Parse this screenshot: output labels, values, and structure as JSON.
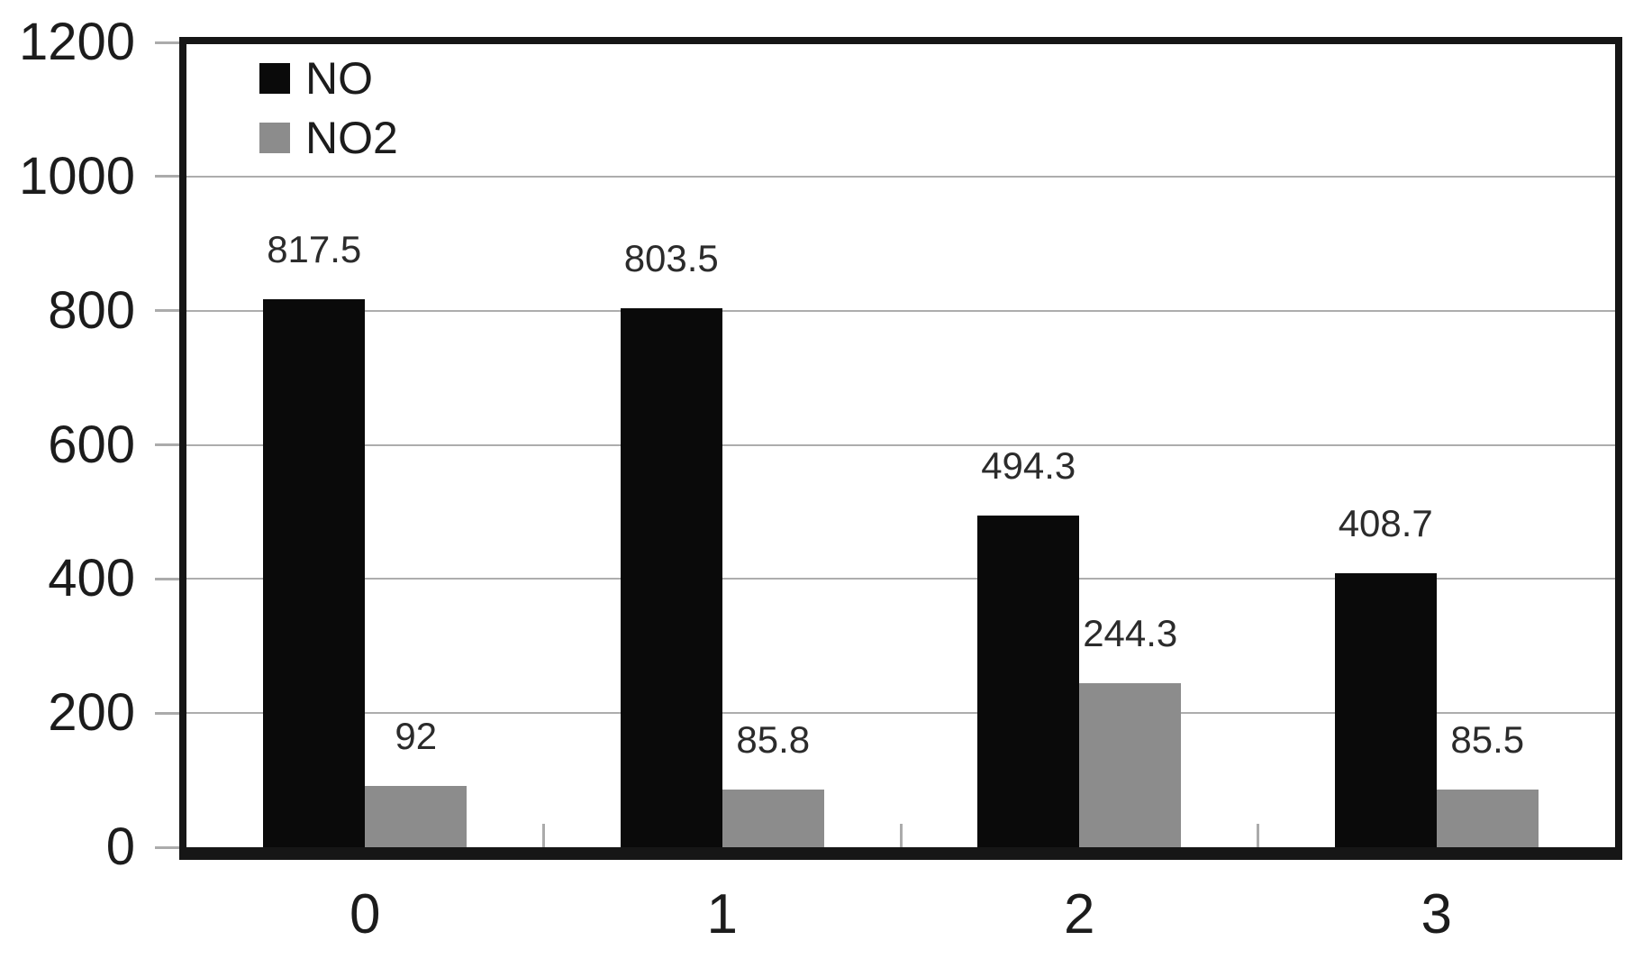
{
  "chart_data": {
    "type": "bar",
    "title": "",
    "xlabel": "",
    "ylabel": "",
    "categories": [
      "0",
      "1",
      "2",
      "3"
    ],
    "series": [
      {
        "name": "NO",
        "color": "#0a0a0a",
        "values": [
          817.5,
          803.5,
          494.3,
          408.7
        ],
        "labels": [
          "817.5",
          "803.5",
          "494.3",
          "408.7"
        ]
      },
      {
        "name": "NO2",
        "color": "#8c8c8c",
        "values": [
          92,
          85.8,
          244.3,
          85.5
        ],
        "labels": [
          "92",
          "85.8",
          "244.3",
          "85.5"
        ]
      }
    ],
    "ylim": [
      0,
      1200
    ],
    "ytick_step": 200,
    "ytick_labels": [
      "0",
      "200",
      "400",
      "600",
      "800",
      "1000",
      "1200"
    ],
    "grid": true,
    "legend_position": "top-left-inside",
    "colors": {
      "background": "#ffffff",
      "gridline": "#adadad",
      "axis_tick": "#ababab",
      "border": "#161616",
      "label_text": "#2b2b2b",
      "axis_text": "#1c1c1c"
    }
  }
}
